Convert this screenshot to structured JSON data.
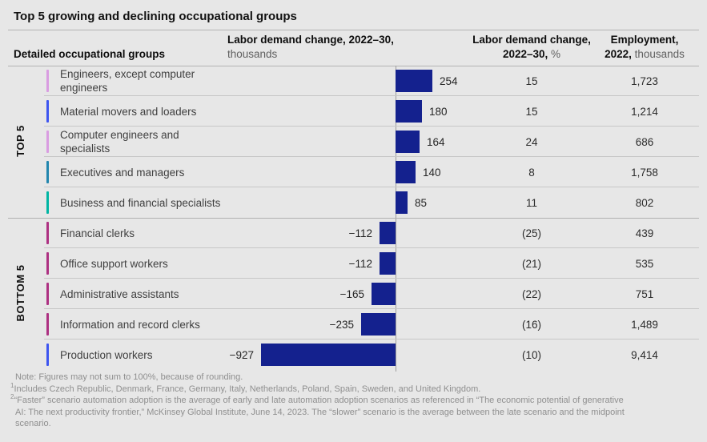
{
  "title": "Top 5 growing and declining occupational groups",
  "header": {
    "col1": "Detailed occupational groups",
    "col2_line1": "Labor demand change, 2022–30,",
    "col2_line2": "thousands",
    "col3_line1": "Labor demand change,",
    "col3_line2_bold": "2022–30,",
    "col3_line2_unit": " %",
    "col4_line1": "Employment,",
    "col4_line2_bold": "2022,",
    "col4_line2_unit": " thousands"
  },
  "sections": {
    "top": "TOP 5",
    "bottom": "BOTTOM 5"
  },
  "colors": {
    "bar": "#14218e",
    "background": "#e7e7e7",
    "tick_pink": "#d99ce1",
    "tick_blue": "#3d55f0",
    "tick_cyan": "#2286ae",
    "tick_teal": "#00b5a3",
    "tick_magenta": "#ad3182"
  },
  "rows": [
    {
      "section": "top",
      "label": "Engineers, except computer engineers",
      "tick_color": "#d99ce1",
      "value": 254,
      "value_label": "254",
      "pct": "15",
      "employment": "1,723"
    },
    {
      "section": "top",
      "label": "Material movers and loaders",
      "tick_color": "#3d55f0",
      "value": 180,
      "value_label": "180",
      "pct": "15",
      "employment": "1,214"
    },
    {
      "section": "top",
      "label": "Computer engineers and specialists",
      "tick_color": "#d99ce1",
      "value": 164,
      "value_label": "164",
      "pct": "24",
      "employment": "686"
    },
    {
      "section": "top",
      "label": "Executives and managers",
      "tick_color": "#2286ae",
      "value": 140,
      "value_label": "140",
      "pct": "8",
      "employment": "1,758"
    },
    {
      "section": "top",
      "label": "Business and financial specialists",
      "tick_color": "#00b5a3",
      "value": 85,
      "value_label": "85",
      "pct": "11",
      "employment": "802"
    },
    {
      "section": "bottom",
      "label": "Financial clerks",
      "tick_color": "#ad3182",
      "value": -112,
      "value_label": "−112",
      "pct": "(25)",
      "employment": "439"
    },
    {
      "section": "bottom",
      "label": "Office support workers",
      "tick_color": "#ad3182",
      "value": -112,
      "value_label": "−112",
      "pct": "(21)",
      "employment": "535"
    },
    {
      "section": "bottom",
      "label": "Administrative assistants",
      "tick_color": "#ad3182",
      "value": -165,
      "value_label": "−165",
      "pct": "(22)",
      "employment": "751"
    },
    {
      "section": "bottom",
      "label": "Information and record clerks",
      "tick_color": "#ad3182",
      "value": -235,
      "value_label": "−235",
      "pct": "(16)",
      "employment": "1,489"
    },
    {
      "section": "bottom",
      "label": "Production workers",
      "tick_color": "#3d55f0",
      "value": -927,
      "value_label": "−927",
      "pct": "(10)",
      "employment": "9,414"
    }
  ],
  "chart_data": {
    "type": "bar",
    "orientation": "horizontal",
    "title": "Top 5 growing and declining occupational groups",
    "categories": [
      "Engineers, except computer engineers",
      "Material movers and loaders",
      "Computer engineers and specialists",
      "Executives and managers",
      "Business and financial specialists",
      "Financial clerks",
      "Office support workers",
      "Administrative assistants",
      "Information and record clerks",
      "Production workers"
    ],
    "series": [
      {
        "name": "Labor demand change, 2022–30, thousands",
        "values": [
          254,
          180,
          164,
          140,
          85,
          -112,
          -112,
          -165,
          -235,
          -927
        ]
      },
      {
        "name": "Labor demand change, 2022–30, %",
        "values": [
          15,
          15,
          24,
          8,
          11,
          -25,
          -21,
          -22,
          -16,
          -10
        ]
      },
      {
        "name": "Employment, 2022, thousands",
        "values": [
          1723,
          1214,
          686,
          1758,
          802,
          439,
          535,
          751,
          1489,
          9414
        ]
      }
    ],
    "group_labels": {
      "TOP 5": [
        0,
        4
      ],
      "BOTTOM 5": [
        5,
        9
      ]
    },
    "xlim": [
      -1000,
      300
    ],
    "grid": false,
    "bar_color": "#14218e"
  },
  "footnotes": [
    {
      "marker": "",
      "text": "Note: Figures may not sum to 100%, because of rounding."
    },
    {
      "marker": "1",
      "text": "Includes Czech Republic, Denmark, France, Germany, Italy, Netherlands, Poland, Spain, Sweden, and United Kingdom."
    },
    {
      "marker": "2",
      "text": "“Faster” scenario automation adoption is the average of early and late automation adoption scenarios as referenced in “The economic potential of generative AI: The next productivity frontier,” McKinsey Global Institute, June 14, 2023. The “slower” scenario is the average between the late scenario and the midpoint scenario."
    }
  ]
}
